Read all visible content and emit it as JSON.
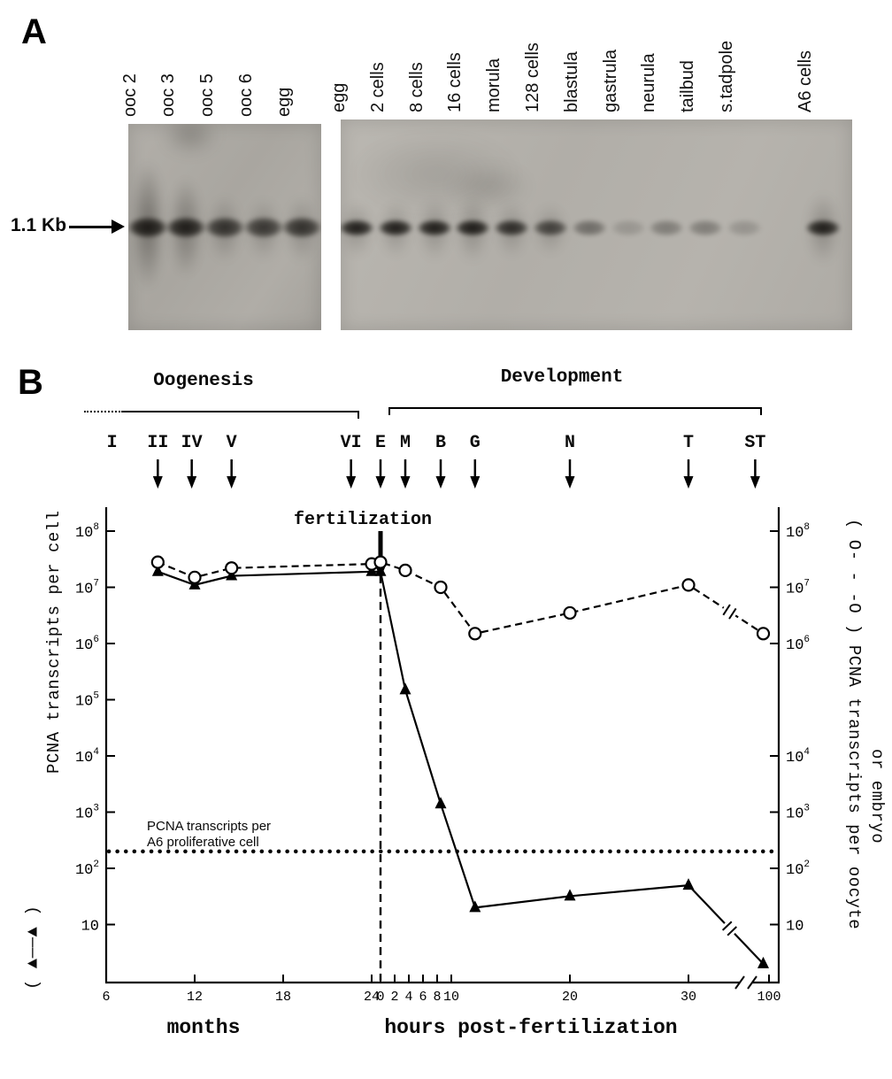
{
  "figure": {
    "panel_a_label": "A",
    "panel_b_label": "B"
  },
  "panel_a": {
    "size_marker": "1.1 Kb",
    "left_gel_lanes": [
      {
        "label": "ooc 2",
        "intensity": 0.97,
        "smear": 0.9
      },
      {
        "label": "ooc 3",
        "intensity": 0.95,
        "smear": 0.6
      },
      {
        "label": "ooc 5",
        "intensity": 0.8,
        "smear": 0.25
      },
      {
        "label": "ooc 6",
        "intensity": 0.75,
        "smear": 0.2
      },
      {
        "label": "egg",
        "intensity": 0.8,
        "smear": 0.25
      }
    ],
    "right_gel_lanes": [
      {
        "label": "egg",
        "intensity": 0.95,
        "smear": 0.15
      },
      {
        "label": "2 cells",
        "intensity": 0.95,
        "smear": 0.15
      },
      {
        "label": "8 cells",
        "intensity": 0.95,
        "smear": 0.2
      },
      {
        "label": "16 cells",
        "intensity": 0.97,
        "smear": 0.25
      },
      {
        "label": "morula",
        "intensity": 0.85,
        "smear": 0.15
      },
      {
        "label": "128 cells",
        "intensity": 0.7,
        "smear": 0.1
      },
      {
        "label": "blastula",
        "intensity": 0.45,
        "smear": 0
      },
      {
        "label": "gastrula",
        "intensity": 0.18,
        "smear": 0
      },
      {
        "label": "neurula",
        "intensity": 0.35,
        "smear": 0
      },
      {
        "label": "tailbud",
        "intensity": 0.35,
        "smear": 0
      },
      {
        "label": "s.tadpole",
        "intensity": 0.2,
        "smear": 0
      },
      {
        "label": "A6 cells",
        "intensity": 0.95,
        "smear": 0.3
      }
    ]
  },
  "panel_b": {
    "phase_labels": {
      "oogenesis": "Oogenesis",
      "development": "Development"
    },
    "stages": [
      {
        "label": "I",
        "axis": "months",
        "value": 6.4,
        "arrow": false
      },
      {
        "label": "II",
        "axis": "months",
        "value": 9.5,
        "arrow": true
      },
      {
        "label": "IV",
        "axis": "months",
        "value": 11.8,
        "arrow": true
      },
      {
        "label": "V",
        "axis": "months",
        "value": 14.5,
        "arrow": true
      },
      {
        "label": "VI",
        "axis": "months",
        "value": 22.6,
        "arrow": true
      },
      {
        "label": "E",
        "axis": "hours",
        "value": 0,
        "arrow": true
      },
      {
        "label": "M",
        "axis": "hours",
        "value": 3.5,
        "arrow": true
      },
      {
        "label": "B",
        "axis": "hours",
        "value": 8.5,
        "arrow": true
      },
      {
        "label": "G",
        "axis": "hours",
        "value": 12,
        "arrow": true
      },
      {
        "label": "N",
        "axis": "hours",
        "value": 20,
        "arrow": true
      },
      {
        "label": "T",
        "axis": "hours",
        "value": 30,
        "arrow": true
      },
      {
        "label": "ST",
        "axis": "hours",
        "value": 88,
        "arrow": true
      }
    ],
    "fertilization_label": "fertilization",
    "left_axis_symbol": "( ▲——▲ )",
    "left_axis_title": "PCNA transcripts per cell",
    "right_axis_line1": "( O- - -O ) PCNA transcripts per oocyte",
    "right_axis_line2": "or embryo",
    "x_axis_label_months": "months",
    "x_axis_label_hours": "hours post-fertilization",
    "reference_label_line1": "PCNA transcripts per",
    "reference_label_line2": "A6 proliferative cell"
  },
  "chart_data": {
    "type": "line",
    "y_scale": "log",
    "ylim": [
      1,
      300000000.0
    ],
    "x_axis": {
      "months_ticks": [
        6,
        12,
        18,
        24
      ],
      "hours_ticks": [
        0,
        2,
        4,
        6,
        8,
        10,
        20,
        30,
        100
      ],
      "axis_break_after_hours": 30
    },
    "y_ticks_left_exponents": [
      8,
      7,
      6,
      5,
      4,
      3,
      2,
      1
    ],
    "y_ticks_right_exponents": [
      8,
      7,
      6,
      4,
      3,
      2,
      1
    ],
    "series": [
      {
        "name": "PCNA transcripts per cell",
        "marker": "filled-triangle",
        "line_style": "solid",
        "points_months": [
          [
            9.5,
            19000000.0
          ],
          [
            12,
            11000000.0
          ],
          [
            14.5,
            16000000.0
          ],
          [
            24,
            19000000.0
          ]
        ],
        "points_hours": [
          [
            0,
            19000000.0
          ],
          [
            3.5,
            150000.0
          ],
          [
            8.5,
            1400.0
          ],
          [
            12,
            20
          ],
          [
            20,
            32
          ],
          [
            30,
            50
          ],
          [
            95,
            2
          ]
        ]
      },
      {
        "name": "PCNA transcripts per oocyte or embryo",
        "marker": "open-circle",
        "line_style": "dashed",
        "points_months": [
          [
            9.5,
            28000000.0
          ],
          [
            12,
            15000000.0
          ],
          [
            14.5,
            22000000.0
          ],
          [
            24,
            26000000.0
          ]
        ],
        "points_hours": [
          [
            0,
            28000000.0
          ],
          [
            3.5,
            20000000.0
          ],
          [
            8.5,
            10000000.0
          ],
          [
            12,
            1500000.0
          ],
          [
            20,
            3500000.0
          ],
          [
            30,
            11000000.0
          ],
          [
            95,
            1500000.0
          ]
        ]
      }
    ],
    "reference_line": {
      "value": 200,
      "label": "PCNA transcripts per A6 proliferative cell"
    },
    "fertilization_marker_hours": 0
  }
}
